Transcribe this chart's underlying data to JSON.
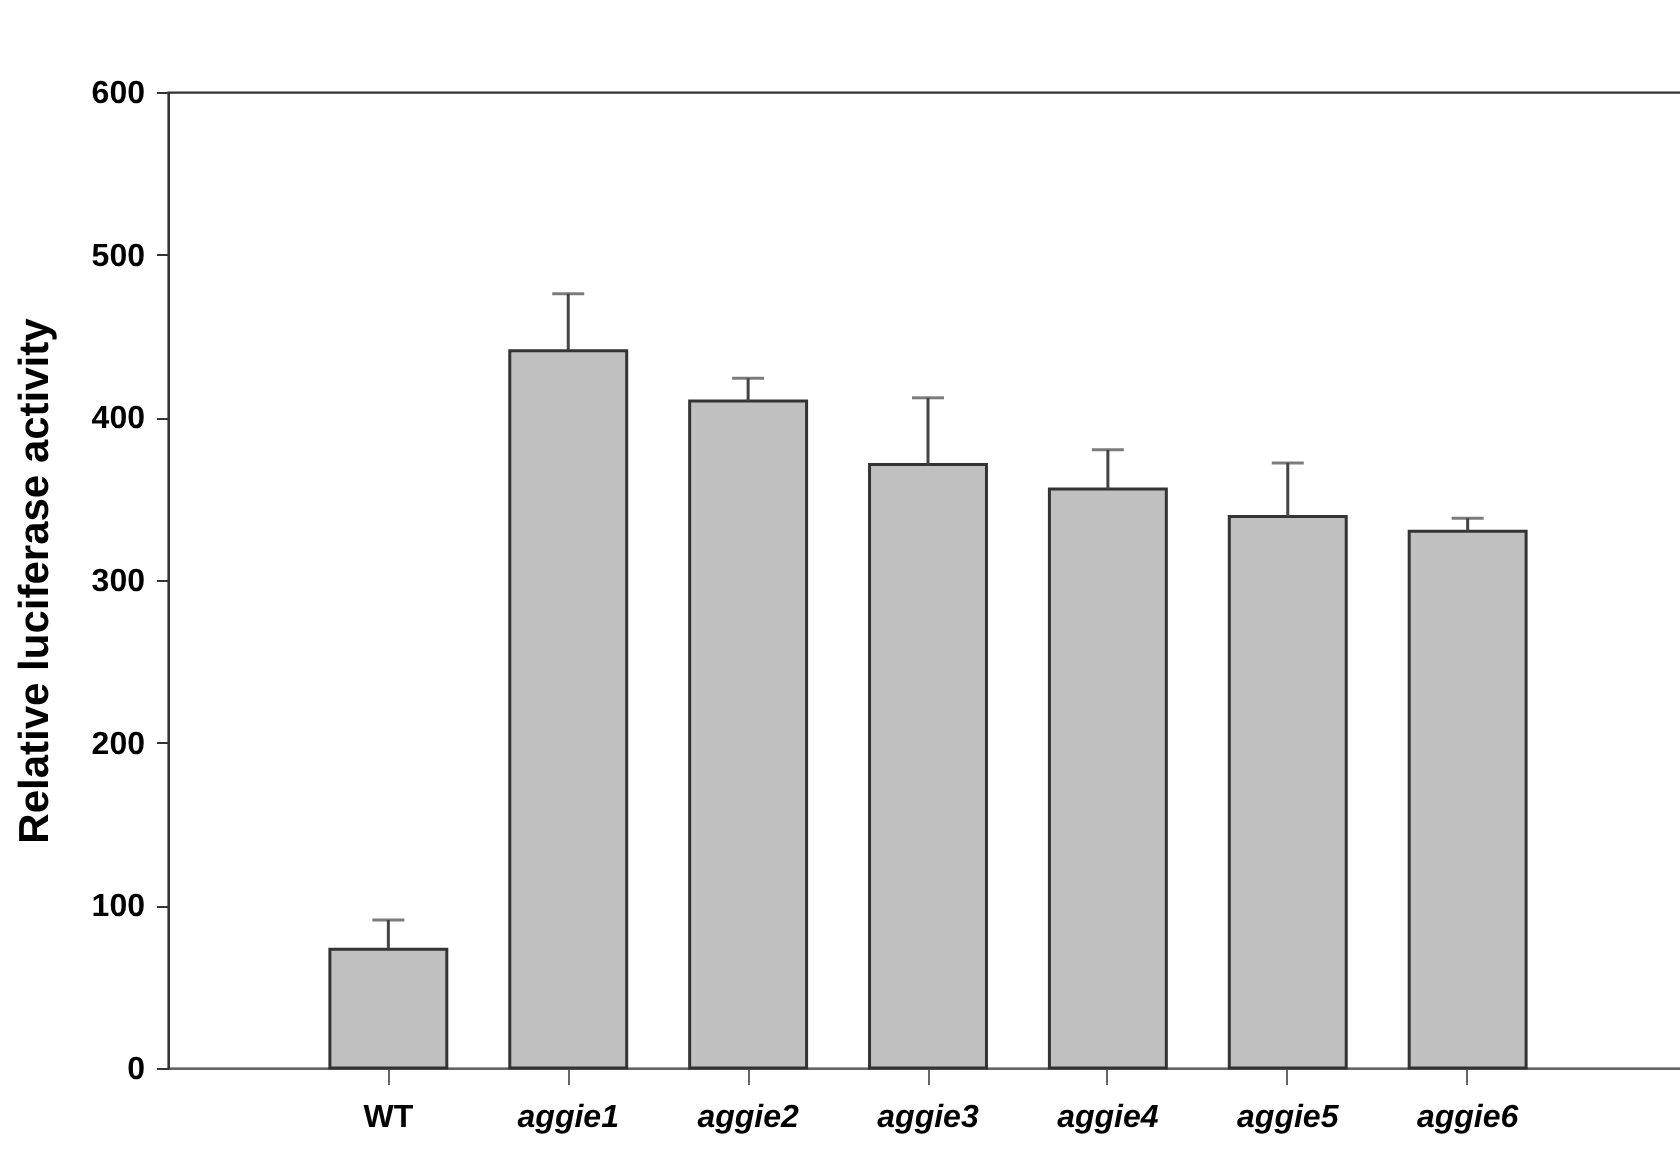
{
  "chart_data": {
    "type": "bar",
    "ylabel": "Relative luciferase activity",
    "categories": [
      "WT",
      "aggie1",
      "aggie2",
      "aggie3",
      "aggie4",
      "aggie5",
      "aggie6"
    ],
    "values": [
      73,
      441,
      410,
      371,
      356,
      339,
      330
    ],
    "errors": [
      [
        73,
        91
      ],
      [
        441,
        476
      ],
      [
        410,
        424
      ],
      [
        371,
        412
      ],
      [
        356,
        380
      ],
      [
        339,
        372
      ],
      [
        330,
        338
      ]
    ],
    "color": "#c0c0c0",
    "ylim": [
      0,
      600
    ],
    "yticks": [
      0,
      100,
      200,
      300,
      400,
      500,
      600
    ],
    "grid": false
  }
}
